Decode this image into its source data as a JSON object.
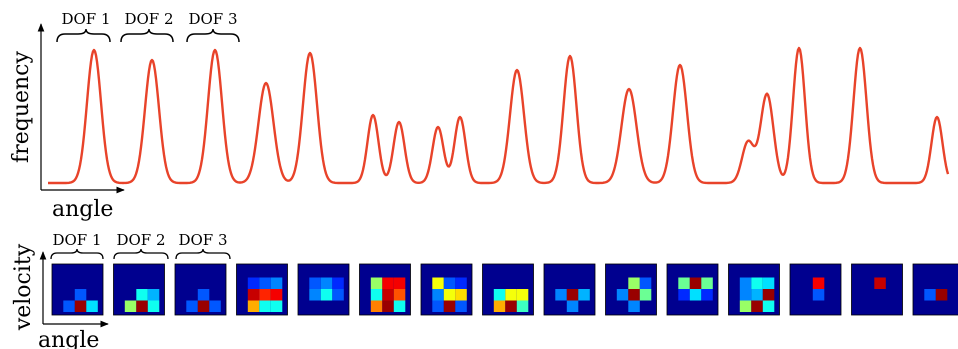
{
  "top_panel": {
    "ylabel": "frequency",
    "xlabel": "angle",
    "dof_labels": [
      "DOF 1",
      "DOF 2",
      "DOF 3"
    ],
    "line_color": "#e8432a"
  },
  "bottom_panel": {
    "ylabel": "velocity",
    "xlabel": "angle",
    "dof_labels": [
      "DOF 1",
      "DOF 2",
      "DOF 3"
    ],
    "colormap": "jet",
    "background_color": "#00008f",
    "heatmaps": [
      [
        [
          0,
          0,
          0
        ],
        [
          0,
          0.1,
          0
        ],
        [
          0.1,
          0.95,
          0.25
        ]
      ],
      [
        [
          0,
          0,
          0
        ],
        [
          0,
          0.3,
          0.2
        ],
        [
          0.45,
          0.95,
          0.3
        ]
      ],
      [
        [
          0,
          0,
          0
        ],
        [
          0,
          0.1,
          0
        ],
        [
          0.1,
          0.95,
          0.1
        ]
      ],
      [
        [
          0.05,
          0.1,
          0.15
        ],
        [
          0.9,
          0.8,
          0.85
        ],
        [
          0.65,
          0.3,
          0.3
        ]
      ],
      [
        [
          0.1,
          0.15,
          0.05
        ],
        [
          0.15,
          0.3,
          0.1
        ],
        [
          0,
          0,
          0
        ]
      ],
      [
        [
          0.45,
          0.85,
          0.85
        ],
        [
          0.3,
          0.9,
          0.75
        ],
        [
          0.7,
          0.95,
          0.3
        ]
      ],
      [
        [
          0.55,
          0.1,
          0.05
        ],
        [
          0.15,
          0.55,
          0.6
        ],
        [
          0.1,
          0.95,
          0.1
        ]
      ],
      [
        [
          0,
          0,
          0
        ],
        [
          0.3,
          0.55,
          0.55
        ],
        [
          0.65,
          0.95,
          0.35
        ]
      ],
      [
        [
          0,
          0,
          0
        ],
        [
          0.15,
          0.95,
          0.2
        ],
        [
          0,
          0.15,
          0
        ]
      ],
      [
        [
          0,
          0.45,
          0.1
        ],
        [
          0.15,
          0.95,
          0.4
        ],
        [
          0,
          0.15,
          0
        ]
      ],
      [
        [
          0.4,
          0.95,
          0.4
        ],
        [
          0.05,
          0.25,
          0.05
        ],
        [
          0,
          0,
          0
        ]
      ],
      [
        [
          0.15,
          0.3,
          0.25
        ],
        [
          0.15,
          0.2,
          0.95
        ],
        [
          0.45,
          0.95,
          0.3
        ]
      ],
      [
        [
          0,
          0.85,
          0
        ],
        [
          0,
          0.1,
          0
        ],
        [
          0,
          0,
          0
        ]
      ],
      [
        [
          0,
          0.9,
          0
        ],
        [
          0,
          0,
          0
        ],
        [
          0,
          0,
          0
        ]
      ],
      [
        [
          0,
          0,
          0
        ],
        [
          0.1,
          0.95,
          0
        ],
        [
          0,
          0,
          0
        ]
      ]
    ]
  }
}
